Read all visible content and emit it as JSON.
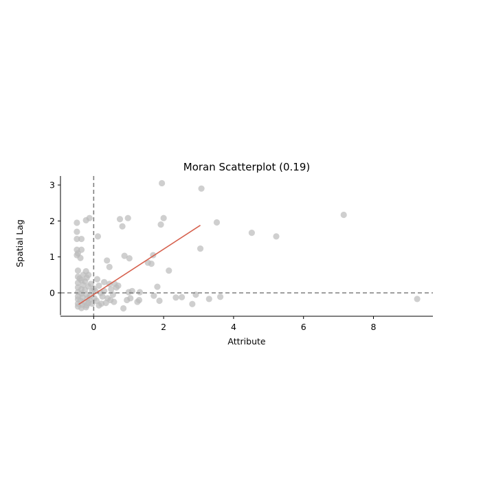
{
  "chart_data": {
    "type": "scatter",
    "title": "Moran Scatterplot (0.19)",
    "xlabel": "Attribute",
    "ylabel": "Spatial Lag",
    "xlim": [
      -0.95,
      9.7
    ],
    "ylim": [
      -0.65,
      3.25
    ],
    "x_ticks": [
      0,
      2,
      4,
      6,
      8
    ],
    "y_ticks": [
      0,
      1,
      2,
      3
    ],
    "grid": false,
    "legend": "none",
    "reference_lines": {
      "x": 0,
      "y": 0,
      "style": "dashed"
    },
    "colors": {
      "points": "#bababa",
      "fit_line": "#d6604d",
      "reference": "#7f7f7f",
      "axes": "#000000"
    },
    "fit_line": {
      "x": [
        -0.43,
        3.05
      ],
      "y": [
        -0.32,
        1.88
      ]
    },
    "points": [
      {
        "x": 9.25,
        "y": -0.17
      },
      {
        "x": 7.15,
        "y": 2.17
      },
      {
        "x": 5.22,
        "y": 1.57
      },
      {
        "x": 4.52,
        "y": 1.67
      },
      {
        "x": 3.52,
        "y": 1.96
      },
      {
        "x": 3.05,
        "y": 1.23
      },
      {
        "x": 3.08,
        "y": 2.9
      },
      {
        "x": 1.95,
        "y": 3.05
      },
      {
        "x": 2.0,
        "y": 2.08
      },
      {
        "x": 1.92,
        "y": 1.9
      },
      {
        "x": 3.62,
        "y": -0.11
      },
      {
        "x": 3.3,
        "y": -0.17
      },
      {
        "x": 2.92,
        "y": -0.05
      },
      {
        "x": 2.82,
        "y": -0.31
      },
      {
        "x": 2.52,
        "y": -0.12
      },
      {
        "x": 2.35,
        "y": -0.13
      },
      {
        "x": 2.15,
        "y": 0.62
      },
      {
        "x": 1.82,
        "y": 0.17
      },
      {
        "x": 1.88,
        "y": -0.22
      },
      {
        "x": 1.7,
        "y": 1.05
      },
      {
        "x": 1.65,
        "y": 0.81
      },
      {
        "x": 1.55,
        "y": 0.84
      },
      {
        "x": 1.72,
        "y": -0.08
      },
      {
        "x": 1.32,
        "y": 0.02
      },
      {
        "x": 1.3,
        "y": -0.2
      },
      {
        "x": 1.25,
        "y": -0.25
      },
      {
        "x": 1.1,
        "y": 0.05
      },
      {
        "x": 1.0,
        "y": 0.02
      },
      {
        "x": 1.05,
        "y": -0.15
      },
      {
        "x": 0.95,
        "y": -0.2
      },
      {
        "x": 1.02,
        "y": 0.96
      },
      {
        "x": 0.98,
        "y": 2.08
      },
      {
        "x": 0.88,
        "y": 1.03
      },
      {
        "x": 0.82,
        "y": 1.85
      },
      {
        "x": 0.75,
        "y": 2.05
      },
      {
        "x": 0.85,
        "y": -0.43
      },
      {
        "x": 0.7,
        "y": 0.2
      },
      {
        "x": 0.45,
        "y": 0.72
      },
      {
        "x": 0.38,
        "y": 0.9
      },
      {
        "x": 0.6,
        "y": 0.25
      },
      {
        "x": 0.5,
        "y": 0.1
      },
      {
        "x": 0.55,
        "y": -0.05
      },
      {
        "x": 0.58,
        "y": -0.25
      },
      {
        "x": 0.4,
        "y": -0.15
      },
      {
        "x": 0.35,
        "y": -0.28
      },
      {
        "x": 0.45,
        "y": 0.25
      },
      {
        "x": 0.3,
        "y": 0.3
      },
      {
        "x": 0.25,
        "y": -0.1
      },
      {
        "x": 0.2,
        "y": 0.0
      },
      {
        "x": 0.12,
        "y": 1.57
      },
      {
        "x": 0.1,
        "y": 0.38
      },
      {
        "x": 0.15,
        "y": 0.2
      },
      {
        "x": 0.15,
        "y": -0.35
      },
      {
        "x": 0.08,
        "y": -0.22
      },
      {
        "x": 0.05,
        "y": 0.05
      },
      {
        "x": -0.12,
        "y": 2.08
      },
      {
        "x": -0.22,
        "y": 2.02
      },
      {
        "x": -0.48,
        "y": 1.95
      },
      {
        "x": -0.48,
        "y": 1.7
      },
      {
        "x": -0.48,
        "y": 1.5
      },
      {
        "x": -0.48,
        "y": 1.2
      },
      {
        "x": -0.45,
        "y": 1.1
      },
      {
        "x": -0.48,
        "y": 1.05
      },
      {
        "x": -0.35,
        "y": 1.5
      },
      {
        "x": -0.35,
        "y": 1.2
      },
      {
        "x": -0.38,
        "y": 0.97
      },
      {
        "x": -0.45,
        "y": 0.62
      },
      {
        "x": -0.22,
        "y": 0.6
      },
      {
        "x": -0.15,
        "y": 0.5
      },
      {
        "x": -0.45,
        "y": 0.45
      },
      {
        "x": -0.35,
        "y": 0.35
      },
      {
        "x": -0.25,
        "y": 0.32
      },
      {
        "x": -0.45,
        "y": 0.28
      },
      {
        "x": -0.3,
        "y": 0.22
      },
      {
        "x": -0.15,
        "y": 0.18
      },
      {
        "x": -0.45,
        "y": 0.15
      },
      {
        "x": -0.35,
        "y": 0.1
      },
      {
        "x": -0.25,
        "y": 0.08
      },
      {
        "x": -0.05,
        "y": 0.05
      },
      {
        "x": -0.45,
        "y": 0.02
      },
      {
        "x": -0.35,
        "y": -0.02
      },
      {
        "x": -0.2,
        "y": -0.05
      },
      {
        "x": -0.1,
        "y": -0.08
      },
      {
        "x": -0.45,
        "y": -0.1
      },
      {
        "x": -0.32,
        "y": -0.12
      },
      {
        "x": -0.18,
        "y": -0.15
      },
      {
        "x": -0.45,
        "y": -0.18
      },
      {
        "x": -0.38,
        "y": -0.22
      },
      {
        "x": -0.28,
        "y": -0.25
      },
      {
        "x": -0.15,
        "y": -0.28
      },
      {
        "x": -0.45,
        "y": -0.3
      },
      {
        "x": -0.32,
        "y": -0.33
      },
      {
        "x": -0.2,
        "y": -0.35
      },
      {
        "x": -0.45,
        "y": -0.38
      },
      {
        "x": -0.35,
        "y": -0.42
      },
      {
        "x": -0.22,
        "y": -0.4
      },
      {
        "x": -0.05,
        "y": -0.3
      },
      {
        "x": 0.02,
        "y": -0.15
      },
      {
        "x": -0.08,
        "y": 0.25
      },
      {
        "x": 0.0,
        "y": 0.12
      },
      {
        "x": -0.12,
        "y": -0.2
      },
      {
        "x": 0.22,
        "y": -0.3
      },
      {
        "x": 0.3,
        "y": 0.05
      },
      {
        "x": 0.48,
        "y": -0.2
      },
      {
        "x": 0.65,
        "y": 0.15
      },
      {
        "x": -0.4,
        "y": 0.4
      },
      {
        "x": -0.3,
        "y": 0.5
      },
      {
        "x": -0.2,
        "y": 0.42
      }
    ]
  }
}
